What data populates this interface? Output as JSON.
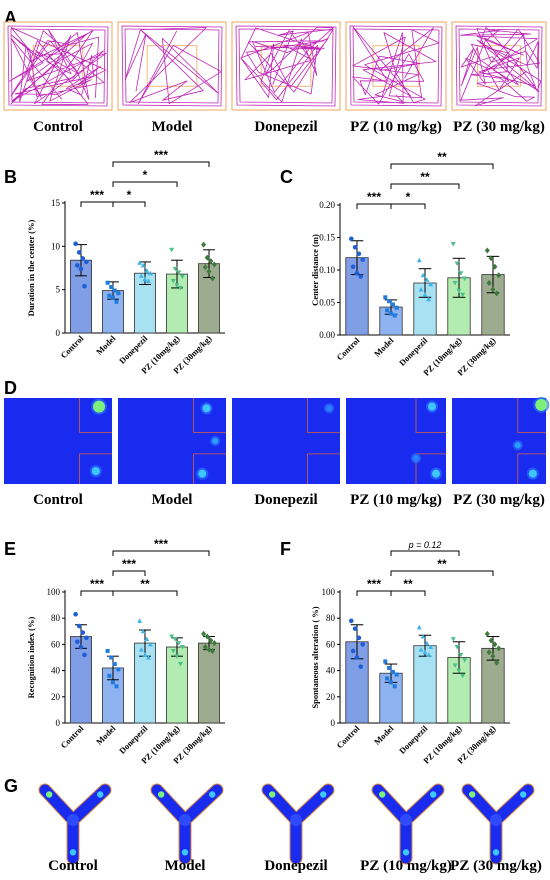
{
  "panels": {
    "A": {
      "letter": "A",
      "groups": [
        "Control",
        "Model",
        "Donepezil",
        "PZ (10 mg/kg)",
        "PZ (30 mg/kg)"
      ],
      "trace_color": "#c026b8",
      "arena_border_color": "#f2a65a",
      "center_zone_color": "#f2a65a"
    },
    "D": {
      "letter": "D",
      "groups": [
        "Control",
        "Model",
        "Donepezil",
        "PZ (10 mg/kg)",
        "PZ (30 mg/kg)"
      ],
      "heatmap_background": "#1a2bf0",
      "zone_line_color": "#e0603a"
    },
    "G": {
      "letter": "G",
      "groups": [
        "Control",
        "Model",
        "Donepezil",
        "PZ (10 mg/kg)",
        "PZ (30 mg/kg)"
      ],
      "heatmap_background": "#1a2bf0",
      "outline_color": "#e08a3a"
    }
  },
  "bar_colors": [
    "#7f9ee6",
    "#8fb2f0",
    "#a8e2f2",
    "#b2ecb0",
    "#9dab8e"
  ],
  "point_colors": [
    "#1f5fd6",
    "#1f7be0",
    "#3fb4e8",
    "#4cc08a",
    "#3d7a3d"
  ],
  "chart_data": [
    {
      "panel": "B",
      "type": "bar",
      "categories": [
        "Control",
        "Model",
        "Donepezil",
        "PZ (10mg/kg)",
        "PZ (30mg/kg)"
      ],
      "values": [
        8.4,
        4.9,
        6.9,
        6.8,
        8.0
      ],
      "errors": [
        1.8,
        1.0,
        1.3,
        1.6,
        1.6
      ],
      "points": [
        [
          10.3,
          9.3,
          8.6,
          8.2,
          7.8,
          7.4,
          5.4
        ],
        [
          5.8,
          5.3,
          4.9,
          4.6,
          4.3,
          4.1,
          3.6
        ],
        [
          8.1,
          7.8,
          7.2,
          6.9,
          6.6,
          6.2,
          6.0
        ],
        [
          9.6,
          7.4,
          7.0,
          6.5,
          6.0,
          5.5,
          5.2
        ],
        [
          10.2,
          8.7,
          8.3,
          7.9,
          7.6,
          7.1,
          6.3
        ]
      ],
      "markers": [
        "circle",
        "square",
        "triangle",
        "triangle-down",
        "diamond"
      ],
      "ylabel": "Duration in the center (%)",
      "ylim": [
        0,
        15
      ],
      "yticks": [
        "0",
        "5",
        "10",
        "15"
      ],
      "brackets": [
        {
          "from": 0,
          "to": 1,
          "label": "***",
          "level": 0
        },
        {
          "from": 1,
          "to": 2,
          "label": "*",
          "level": 0
        },
        {
          "from": 1,
          "to": 3,
          "label": "*",
          "level": 1
        },
        {
          "from": 1,
          "to": 4,
          "label": "***",
          "level": 2
        }
      ]
    },
    {
      "panel": "C",
      "type": "bar",
      "categories": [
        "Control",
        "Model",
        "Donepezil",
        "PZ (10mg/kg)",
        "PZ (30mg/kg)"
      ],
      "values": [
        0.119,
        0.043,
        0.08,
        0.088,
        0.093
      ],
      "errors": [
        0.026,
        0.011,
        0.022,
        0.03,
        0.028
      ],
      "points": [
        [
          0.148,
          0.135,
          0.125,
          0.116,
          0.105,
          0.095,
          0.09
        ],
        [
          0.058,
          0.052,
          0.047,
          0.042,
          0.038,
          0.033,
          0.03
        ],
        [
          0.115,
          0.092,
          0.085,
          0.078,
          0.07,
          0.062,
          0.055
        ],
        [
          0.14,
          0.11,
          0.095,
          0.087,
          0.08,
          0.068,
          0.062
        ],
        [
          0.13,
          0.118,
          0.105,
          0.092,
          0.08,
          0.07,
          0.064
        ]
      ],
      "markers": [
        "circle",
        "square",
        "triangle",
        "triangle-down",
        "diamond"
      ],
      "ylabel": "Center distance (m)",
      "ylim": [
        0,
        0.2
      ],
      "yticks": [
        "0.00",
        "0.05",
        "0.10",
        "0.15",
        "0.20"
      ],
      "brackets": [
        {
          "from": 0,
          "to": 1,
          "label": "***",
          "level": 0
        },
        {
          "from": 1,
          "to": 2,
          "label": "*",
          "level": 0
        },
        {
          "from": 1,
          "to": 3,
          "label": "**",
          "level": 1
        },
        {
          "from": 1,
          "to": 4,
          "label": "**",
          "level": 2
        }
      ]
    },
    {
      "panel": "E",
      "type": "bar",
      "categories": [
        "Control",
        "Model",
        "Donepezil",
        "PZ (10mg/kg)",
        "PZ (30mg/kg)"
      ],
      "values": [
        66,
        42,
        61,
        58,
        61
      ],
      "errors": [
        9,
        9,
        10,
        7,
        5
      ],
      "points": [
        [
          83,
          74,
          69,
          65,
          62,
          58,
          52
        ],
        [
          55,
          50,
          45,
          41,
          36,
          31,
          28
        ],
        [
          78,
          70,
          64,
          60,
          56,
          52,
          50
        ],
        [
          66,
          64,
          61,
          58,
          55,
          51,
          45
        ],
        [
          68,
          66,
          63,
          61,
          58,
          56,
          55
        ]
      ],
      "markers": [
        "circle",
        "square",
        "triangle",
        "triangle-down",
        "diamond"
      ],
      "ylabel": "Recognition index (%)",
      "ylim": [
        0,
        100
      ],
      "yticks": [
        "0",
        "20",
        "40",
        "60",
        "80",
        "100"
      ],
      "brackets": [
        {
          "from": 0,
          "to": 1,
          "label": "***",
          "level": 0
        },
        {
          "from": 1,
          "to": 2,
          "label": "***",
          "level": 1
        },
        {
          "from": 1,
          "to": 3,
          "label": "**",
          "level": 0
        },
        {
          "from": 1,
          "to": 4,
          "label": "***",
          "level": 2
        }
      ]
    },
    {
      "panel": "F",
      "type": "bar",
      "categories": [
        "Control",
        "Model",
        "Donepezil",
        "PZ (10mg/kg)",
        "PZ (30mg/kg)"
      ],
      "values": [
        62,
        38,
        59,
        50,
        57
      ],
      "errors": [
        13,
        7,
        8,
        12,
        9
      ],
      "points": [
        [
          78,
          72,
          65,
          60,
          55,
          50,
          43
        ],
        [
          47,
          42,
          39,
          37,
          34,
          31,
          28
        ],
        [
          73,
          66,
          61,
          58,
          56,
          54,
          52
        ],
        [
          64,
          58,
          52,
          48,
          44,
          40,
          36
        ],
        [
          68,
          63,
          60,
          57,
          54,
          51,
          46
        ]
      ],
      "markers": [
        "circle",
        "square",
        "triangle",
        "triangle-down",
        "diamond"
      ],
      "ylabel": "Spontaneous alteration ( %)",
      "ylim": [
        0,
        100
      ],
      "yticks": [
        "0",
        "20",
        "40",
        "60",
        "80",
        "100"
      ],
      "brackets": [
        {
          "from": 0,
          "to": 1,
          "label": "***",
          "level": 0
        },
        {
          "from": 1,
          "to": 2,
          "label": "**",
          "level": 0
        },
        {
          "from": 1,
          "to": 4,
          "label": "**",
          "level": 1
        },
        {
          "from": 1,
          "to": 3,
          "label": "p = 0.12",
          "level": 2
        }
      ]
    }
  ]
}
